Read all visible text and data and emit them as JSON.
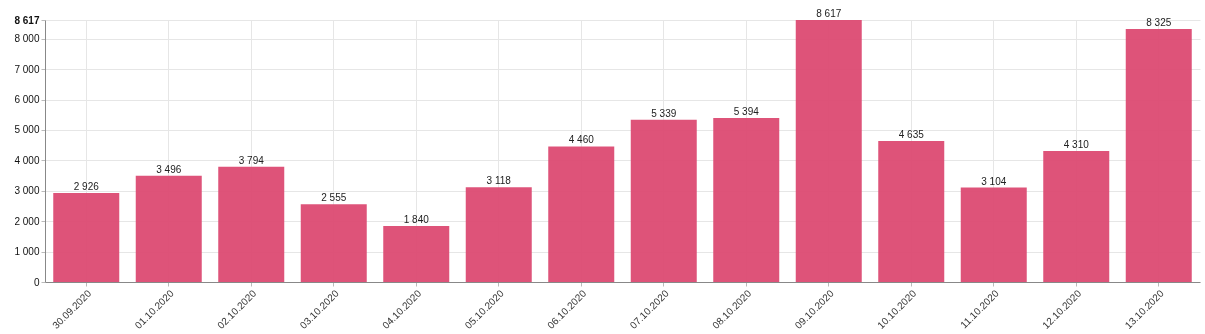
{
  "chart_data": {
    "type": "bar",
    "categories": [
      "30.09.2020",
      "01.10.2020",
      "02.10.2020",
      "03.10.2020",
      "04.10.2020",
      "05.10.2020",
      "06.10.2020",
      "07.10.2020",
      "08.10.2020",
      "09.10.2020",
      "10.10.2020",
      "11.10.2020",
      "12.10.2020",
      "13.10.2020"
    ],
    "values": [
      2926,
      3496,
      3794,
      2555,
      1840,
      3118,
      4460,
      5339,
      5394,
      8617,
      4635,
      3104,
      4310,
      8325
    ],
    "value_labels": [
      "2 926",
      "3 496",
      "3 794",
      "2 555",
      "1 840",
      "3 118",
      "4 460",
      "5 339",
      "5 394",
      "8 617",
      "4 635",
      "3 104",
      "4 310",
      "8 325"
    ],
    "color": "#dc4a72",
    "ylim": [
      0,
      8617
    ],
    "yticks": [
      0,
      {
        "value": 1000,
        "label": "1 000"
      },
      {
        "value": 2000,
        "label": "2 000"
      },
      {
        "value": 3000,
        "label": "3 000"
      },
      {
        "value": 4000,
        "label": "4 000"
      },
      {
        "value": 5000,
        "label": "5 000"
      },
      {
        "value": 6000,
        "label": "6 000"
      },
      {
        "value": 7000,
        "label": "7 000"
      },
      {
        "value": 8000,
        "label": "8 000"
      },
      {
        "value": 8617,
        "label": "8 617"
      }
    ],
    "grid": true
  }
}
